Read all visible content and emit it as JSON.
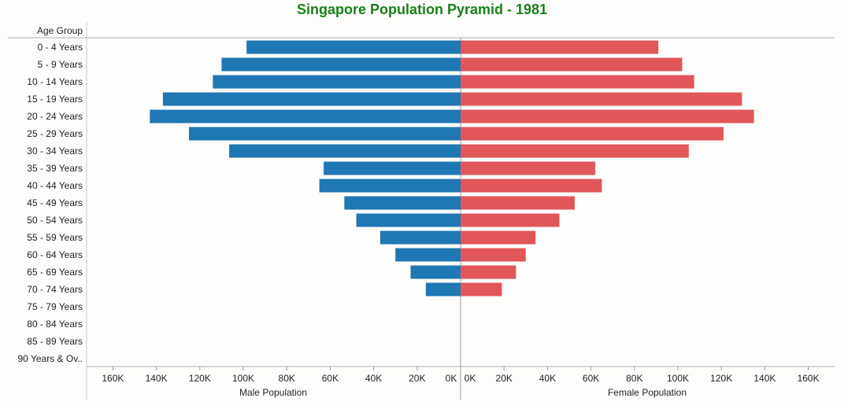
{
  "chart_data": {
    "type": "bar",
    "title": "Singapore Population Pyramid - 1981",
    "row_header": "Age Group",
    "categories": [
      "0  -  4 Years",
      "5  -  9 Years",
      "10 - 14 Years",
      "15 - 19 Years",
      "20 - 24 Years",
      "25 - 29 Years",
      "30 - 34 Years",
      "35 - 39 Years",
      "40 - 44 Years",
      "45 - 49 Years",
      "50 - 54 Years",
      "55 - 59 Years",
      "60 - 64 Years",
      "65 - 69 Years",
      "70 - 74 Years",
      "75 - 79 Years",
      "80 - 84 Years",
      "85 - 89 Years",
      "90 Years & Ov.."
    ],
    "series": [
      {
        "name": "Male Population",
        "color": "#1f77b4",
        "values": [
          98500,
          110000,
          114000,
          137000,
          143000,
          125000,
          106500,
          63000,
          65000,
          53500,
          48000,
          37000,
          30000,
          23000,
          16000,
          null,
          null,
          null,
          null
        ]
      },
      {
        "name": "Female Population",
        "color": "#e15759",
        "values": [
          91000,
          102000,
          107500,
          129500,
          135000,
          121000,
          105000,
          62000,
          65000,
          52500,
          45500,
          34500,
          30000,
          25500,
          19000,
          null,
          null,
          null,
          null
        ]
      }
    ],
    "xlim": [
      0,
      160000
    ],
    "tick_labels": [
      "0K",
      "20K",
      "40K",
      "60K",
      "80K",
      "100K",
      "120K",
      "140K",
      "160K"
    ],
    "xlabel_left": "Male Population",
    "xlabel_right": "Female Population",
    "grid": false
  }
}
